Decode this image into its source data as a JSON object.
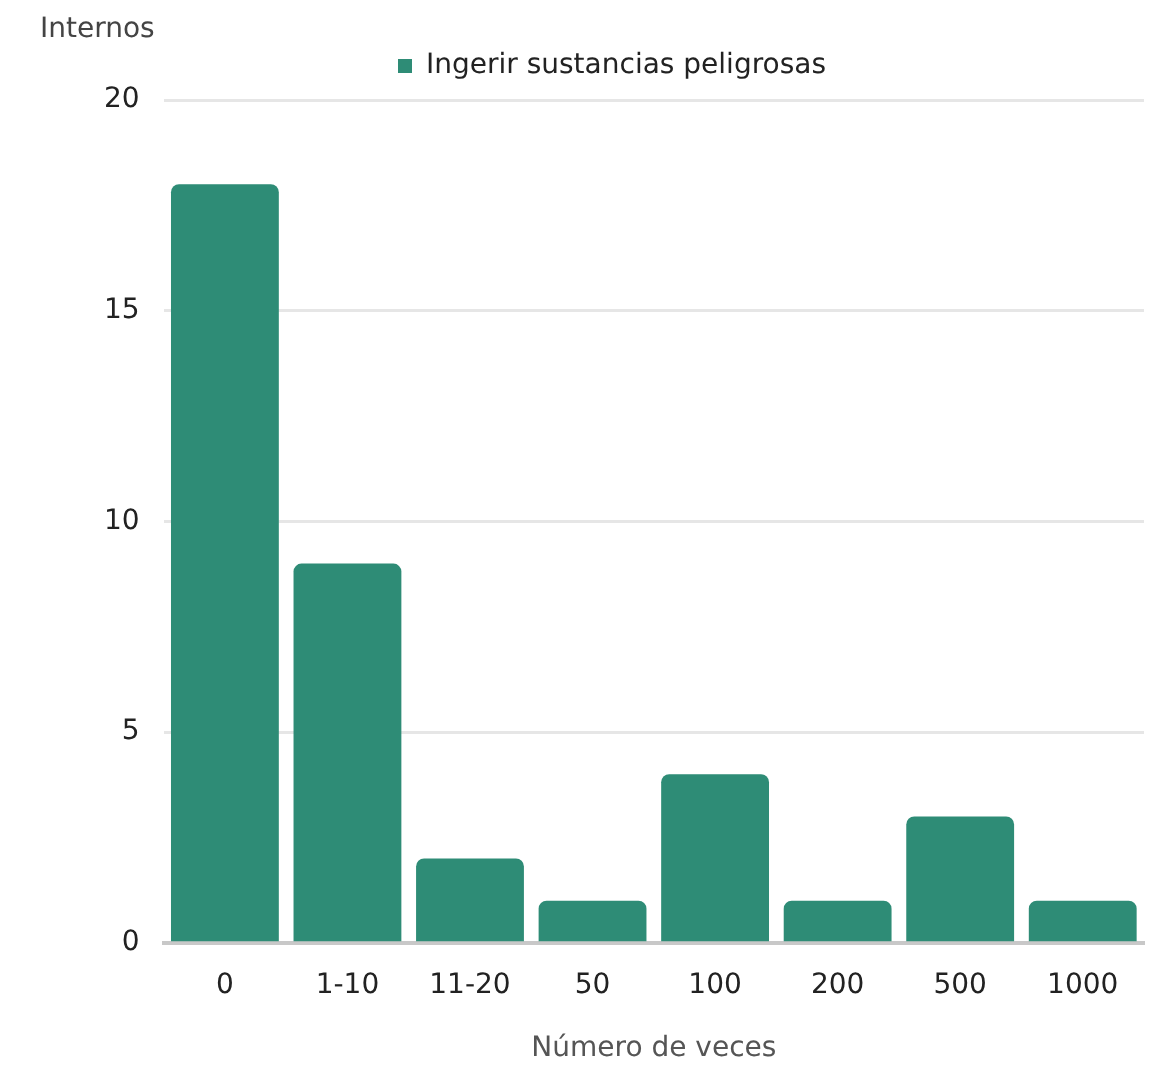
{
  "chart_data": {
    "type": "bar",
    "ylabel": "Internos",
    "xlabel": "Número de veces",
    "categories": [
      "0",
      "1-10",
      "11-20",
      "50",
      "100",
      "200",
      "500",
      "1000"
    ],
    "series": [
      {
        "name": "Ingerir sustancias peligrosas",
        "color": "#2e8c76",
        "values": [
          18,
          9,
          2,
          1,
          4,
          1,
          3,
          1
        ]
      }
    ],
    "ylim": [
      0,
      20
    ],
    "yticks": [
      0,
      5,
      10,
      15,
      20
    ],
    "grid": "y",
    "legend": "top"
  }
}
